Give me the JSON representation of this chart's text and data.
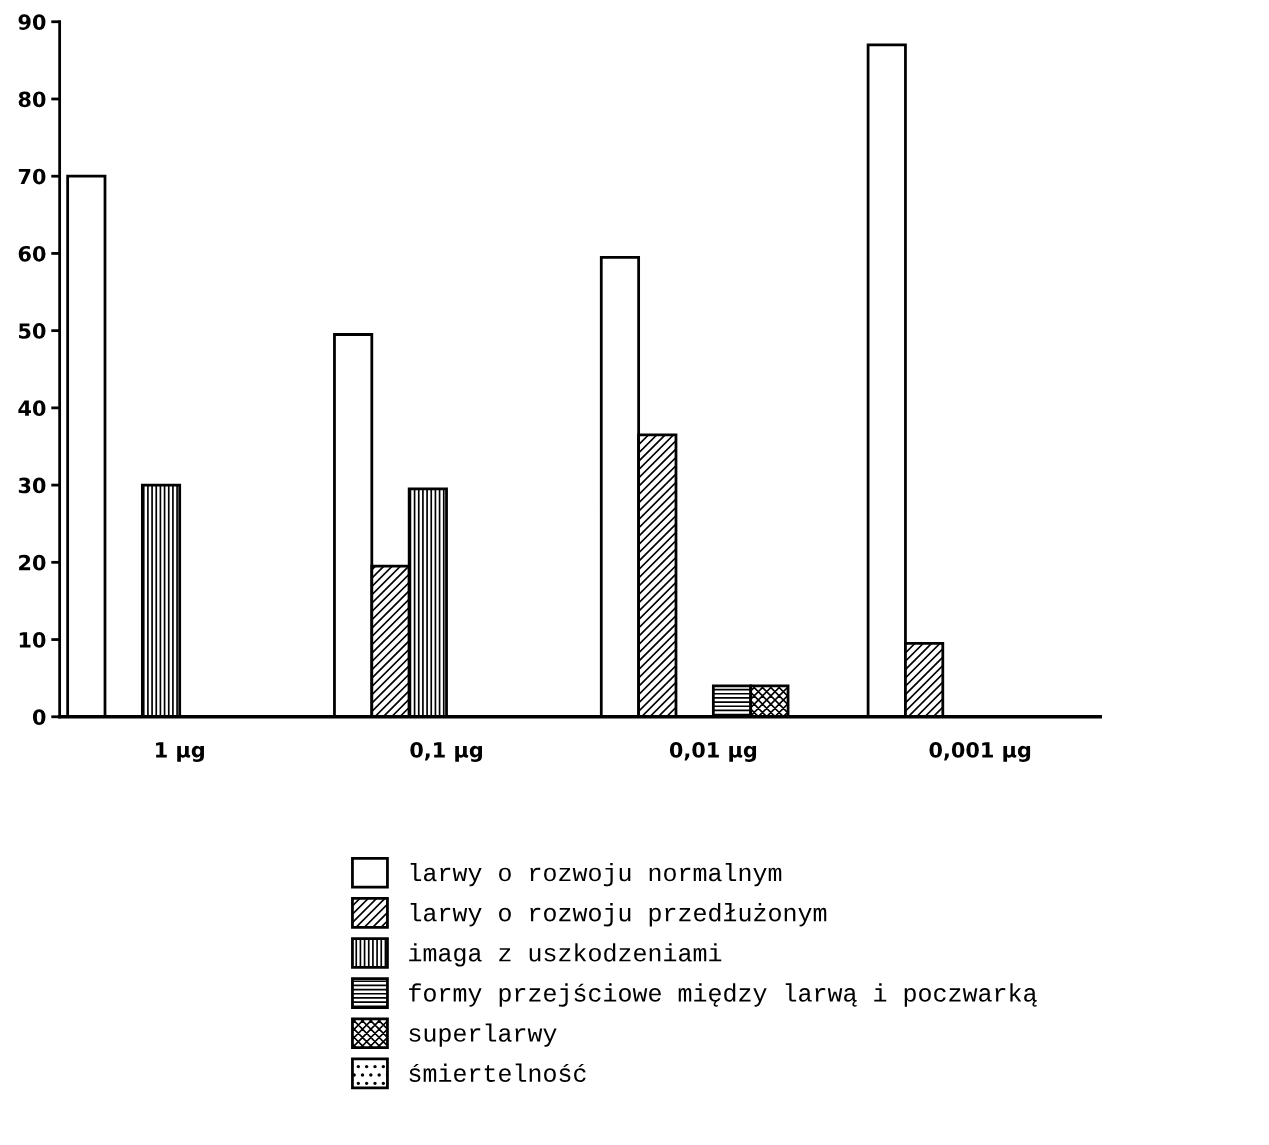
{
  "chart_data": {
    "type": "bar",
    "categories": [
      "1 µg",
      "0,1 µg",
      "0,01 µg",
      "0,001 µg"
    ],
    "series": [
      {
        "name": "larwy o rozwoju normalnym",
        "color": "#ffffff",
        "values": [
          70,
          49.5,
          59.5,
          87
        ]
      },
      {
        "name": "larwy o rozwoju przedłużonym",
        "color": "#000000",
        "values": [
          null,
          19.5,
          36.5,
          9.5
        ]
      },
      {
        "name": "imaga z uszkodzeniami",
        "color": "#000000",
        "values": [
          30,
          29.5,
          null,
          null
        ]
      },
      {
        "name": "formy przejściowe między larwą i poczwarką",
        "color": "#000000",
        "values": [
          null,
          null,
          4,
          null
        ]
      },
      {
        "name": "superlarwy",
        "color": "#000000",
        "values": [
          null,
          null,
          4,
          null
        ]
      },
      {
        "name": "śmiertelność",
        "color": "#000000",
        "values": [
          null,
          null,
          null,
          null
        ]
      }
    ],
    "ylim": [
      0,
      90
    ],
    "yticks": [
      0,
      10,
      20,
      30,
      40,
      50,
      60,
      70,
      80,
      90
    ],
    "grid": false,
    "legend": "bottom"
  }
}
